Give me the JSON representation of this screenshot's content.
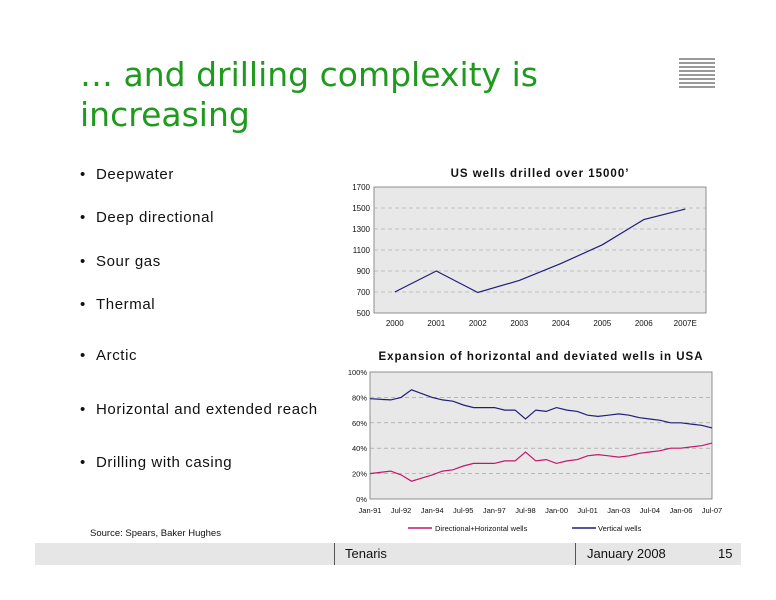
{
  "title": "… and drilling complexity is increasing",
  "bullets": [
    "Deepwater",
    "Deep directional",
    "Sour gas",
    "Thermal",
    "Arctic",
    "Horizontal and extended reach",
    "Drilling with casing"
  ],
  "source": "Source:   Spears, Baker Hughes",
  "footer": {
    "company": "Tenaris",
    "date": "January 2008",
    "page": "15"
  },
  "colors": {
    "title": "#1f9a1f",
    "chart1_line": "#1f1f7a",
    "directional": "#c2186b",
    "vertical": "#1f1f7a",
    "plot_bg": "#e8e8e8"
  },
  "chart_data": [
    {
      "type": "line",
      "title": "US wells drilled over 15000’",
      "categories": [
        "2000",
        "2001",
        "2002",
        "2003",
        "2004",
        "2005",
        "2006",
        "2007E"
      ],
      "series": [
        {
          "values": [
            700,
            900,
            695,
            810,
            970,
            1150,
            1390,
            1490
          ]
        }
      ],
      "ylim": [
        500,
        1700
      ],
      "yticks": [
        "1700",
        "1500",
        "1300",
        "1100",
        "900",
        "700",
        "500"
      ],
      "grid": true
    },
    {
      "type": "line",
      "title": "Expansion of horizontal and deviated wells in USA",
      "xticks": [
        "Jan-91",
        "Jul-92",
        "Jan-94",
        "Jul-95",
        "Jan-97",
        "Jul-98",
        "Jan-00",
        "Jul-01",
        "Jan-03",
        "Jul-04",
        "Jan-06",
        "Jul-07"
      ],
      "yticks": [
        "100%",
        "80%",
        "60%",
        "40%",
        "20%",
        "0%"
      ],
      "ylim": [
        0,
        100
      ],
      "legend": "bottom",
      "grid": true,
      "series": [
        {
          "name": "Directional+Horizontal wells",
          "x": [
            "Jan-91",
            "Jan-92",
            "Jul-92",
            "Jan-93",
            "Jan-94",
            "Jul-94",
            "Jan-95",
            "Jul-95",
            "Jan-96",
            "Jan-97",
            "Jul-97",
            "Jan-98",
            "Jul-98",
            "Jan-99",
            "Jul-99",
            "Jan-00",
            "Jul-00",
            "Jan-01",
            "Jul-01",
            "Jan-02",
            "Jul-02",
            "Jan-03",
            "Jul-03",
            "Jan-04",
            "Jul-04",
            "Jan-05",
            "Jul-05",
            "Jan-06",
            "Jul-06",
            "Jan-07",
            "Jul-07"
          ],
          "values": [
            20,
            22,
            19,
            14,
            19,
            22,
            23,
            26,
            28,
            28,
            30,
            30,
            37,
            30,
            31,
            28,
            30,
            31,
            34,
            35,
            34,
            33,
            34,
            36,
            37,
            38,
            40,
            40,
            41,
            42,
            44
          ]
        },
        {
          "name": "Vertical wells",
          "x": [
            "Jan-91",
            "Jan-92",
            "Jul-92",
            "Jan-93",
            "Jan-94",
            "Jul-94",
            "Jan-95",
            "Jul-95",
            "Jan-96",
            "Jan-97",
            "Jul-97",
            "Jan-98",
            "Jul-98",
            "Jan-99",
            "Jul-99",
            "Jan-00",
            "Jul-00",
            "Jan-01",
            "Jul-01",
            "Jan-02",
            "Jul-02",
            "Jan-03",
            "Jul-03",
            "Jan-04",
            "Jul-04",
            "Jan-05",
            "Jul-05",
            "Jan-06",
            "Jul-06",
            "Jan-07",
            "Jul-07"
          ],
          "values": [
            79,
            78,
            80,
            86,
            80,
            78,
            77,
            74,
            72,
            72,
            70,
            70,
            63,
            70,
            69,
            72,
            70,
            69,
            66,
            65,
            66,
            67,
            66,
            64,
            63,
            62,
            60,
            60,
            59,
            58,
            56
          ]
        }
      ]
    }
  ]
}
